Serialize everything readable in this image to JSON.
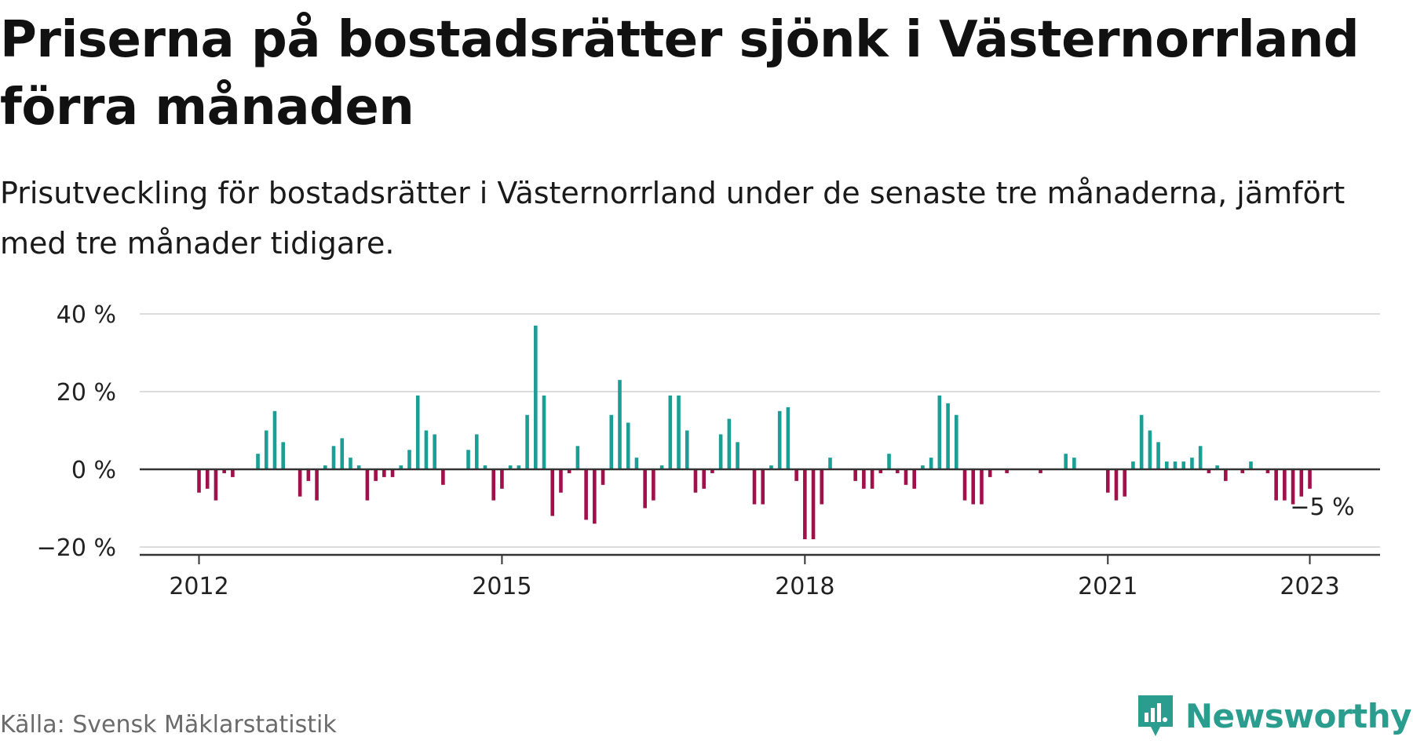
{
  "title": "Priserna på bostadsrätter sjönk i Västernorrland förra månaden",
  "subtitle": "Prisutveckling för bostadsrätter i Västernorrland under de senaste tre månaderna, jämfört med tre månader tidigare.",
  "source": "Källa: Svensk Mäklarstatistik",
  "logo_text": "Newsworthy",
  "colors": {
    "positive": "#1a9e96",
    "negative": "#a0104a",
    "grid": "#dcdcdc",
    "axis": "#333333",
    "brand": "#2a9d8f"
  },
  "chart_data": {
    "type": "bar",
    "ylabel": "",
    "xlabel": "",
    "ylim": [
      -20,
      40
    ],
    "y_ticks": [
      {
        "value": 40,
        "label": "40 %"
      },
      {
        "value": 20,
        "label": "20 %"
      },
      {
        "value": 0,
        "label": "0 %"
      },
      {
        "value": -20,
        "label": "−20 %"
      }
    ],
    "x_ticks": [
      {
        "value": "2012-01",
        "label": "2012"
      },
      {
        "value": "2015-01",
        "label": "2015"
      },
      {
        "value": "2018-01",
        "label": "2018"
      },
      {
        "value": "2021-01",
        "label": "2021"
      },
      {
        "value": "2023-01",
        "label": "2023"
      }
    ],
    "grid": true,
    "annotation": {
      "text": "−5 %",
      "x": "2023-01"
    },
    "series": [
      {
        "x": [
          "2012-01",
          "2012-02",
          "2012-03",
          "2012-04",
          "2012-05",
          "2012-06",
          "2012-07",
          "2012-08",
          "2012-09",
          "2012-10",
          "2012-11",
          "2012-12",
          "2013-01",
          "2013-02",
          "2013-03",
          "2013-04",
          "2013-05",
          "2013-06",
          "2013-07",
          "2013-08",
          "2013-09",
          "2013-10",
          "2013-11",
          "2013-12",
          "2014-01",
          "2014-02",
          "2014-03",
          "2014-04",
          "2014-05",
          "2014-06",
          "2014-07",
          "2014-08",
          "2014-09",
          "2014-10",
          "2014-11",
          "2014-12",
          "2015-01",
          "2015-02",
          "2015-03",
          "2015-04",
          "2015-05",
          "2015-06",
          "2015-07",
          "2015-08",
          "2015-09",
          "2015-10",
          "2015-11",
          "2015-12",
          "2016-01",
          "2016-02",
          "2016-03",
          "2016-04",
          "2016-05",
          "2016-06",
          "2016-07",
          "2016-08",
          "2016-09",
          "2016-10",
          "2016-11",
          "2016-12",
          "2017-01",
          "2017-02",
          "2017-03",
          "2017-04",
          "2017-05",
          "2017-06",
          "2017-07",
          "2017-08",
          "2017-09",
          "2017-10",
          "2017-11",
          "2017-12",
          "2018-01",
          "2018-02",
          "2018-03",
          "2018-04",
          "2018-05",
          "2018-06",
          "2018-07",
          "2018-08",
          "2018-09",
          "2018-10",
          "2018-11",
          "2018-12",
          "2019-01",
          "2019-02",
          "2019-03",
          "2019-04",
          "2019-05",
          "2019-06",
          "2019-07",
          "2019-08",
          "2019-09",
          "2019-10",
          "2019-11",
          "2019-12",
          "2020-01",
          "2020-02",
          "2020-03",
          "2020-04",
          "2020-05",
          "2020-06",
          "2020-07",
          "2020-08",
          "2020-09",
          "2020-10",
          "2020-11",
          "2020-12",
          "2021-01",
          "2021-02",
          "2021-03",
          "2021-04",
          "2021-05",
          "2021-06",
          "2021-07",
          "2021-08",
          "2021-09",
          "2021-10",
          "2021-11",
          "2021-12",
          "2022-01",
          "2022-02",
          "2022-03",
          "2022-04",
          "2022-05",
          "2022-06",
          "2022-07",
          "2022-08",
          "2022-09",
          "2022-10",
          "2022-11",
          "2022-12",
          "2023-01"
        ],
        "values": [
          -6,
          -5,
          -8,
          -1,
          -2,
          0,
          0,
          4,
          10,
          15,
          7,
          0,
          -7,
          -3,
          -8,
          1,
          6,
          8,
          3,
          1,
          -8,
          -3,
          -2,
          -2,
          1,
          5,
          19,
          10,
          9,
          -4,
          0,
          0,
          5,
          9,
          1,
          -8,
          -5,
          1,
          1,
          14,
          37,
          19,
          -12,
          -6,
          -1,
          6,
          -13,
          -14,
          -4,
          14,
          23,
          12,
          3,
          -10,
          -8,
          1,
          19,
          19,
          10,
          -6,
          -5,
          -1,
          9,
          13,
          7,
          0,
          -9,
          -9,
          1,
          15,
          16,
          -3,
          -18,
          -18,
          -9,
          3,
          0,
          0,
          -3,
          -5,
          -5,
          -1,
          4,
          -1,
          -4,
          -5,
          1,
          3,
          19,
          17,
          14,
          -8,
          -9,
          -9,
          -2,
          0,
          -1,
          0,
          0,
          0,
          -1,
          0,
          0,
          4,
          3,
          0,
          0,
          0,
          -6,
          -8,
          -7,
          2,
          14,
          10,
          7,
          2,
          2,
          2,
          3,
          6,
          -1,
          1,
          -3,
          0,
          -1,
          2,
          0,
          -1,
          -8,
          -8,
          -9,
          -7,
          -5
        ]
      }
    ]
  }
}
